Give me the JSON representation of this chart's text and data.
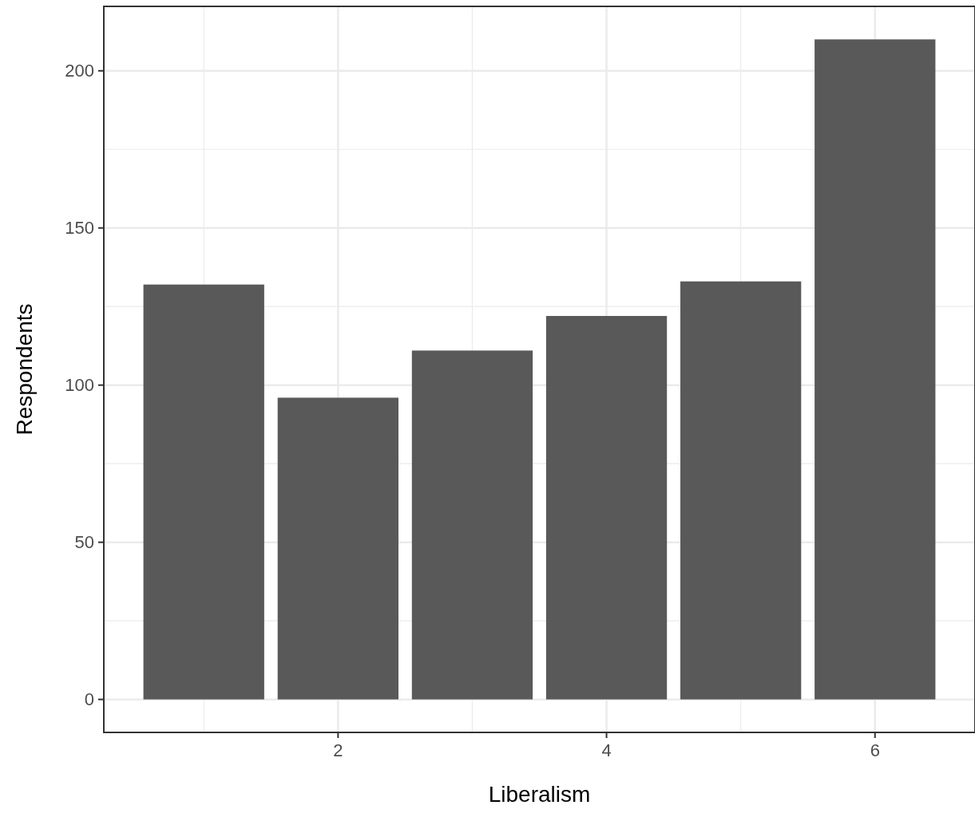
{
  "chart_data": {
    "type": "bar",
    "xlabel": "Liberalism",
    "ylabel": "Respondents",
    "x": [
      1,
      2,
      3,
      4,
      5,
      6
    ],
    "values": [
      132,
      96,
      111,
      122,
      133,
      210
    ],
    "color": "#595959",
    "xlim": [
      0.255,
      6.745
    ],
    "xticks": [
      2,
      4,
      6
    ],
    "ylim": [
      -10.5,
      220.5
    ],
    "yticks": [
      0,
      50,
      100,
      150,
      200
    ],
    "grid": true
  }
}
